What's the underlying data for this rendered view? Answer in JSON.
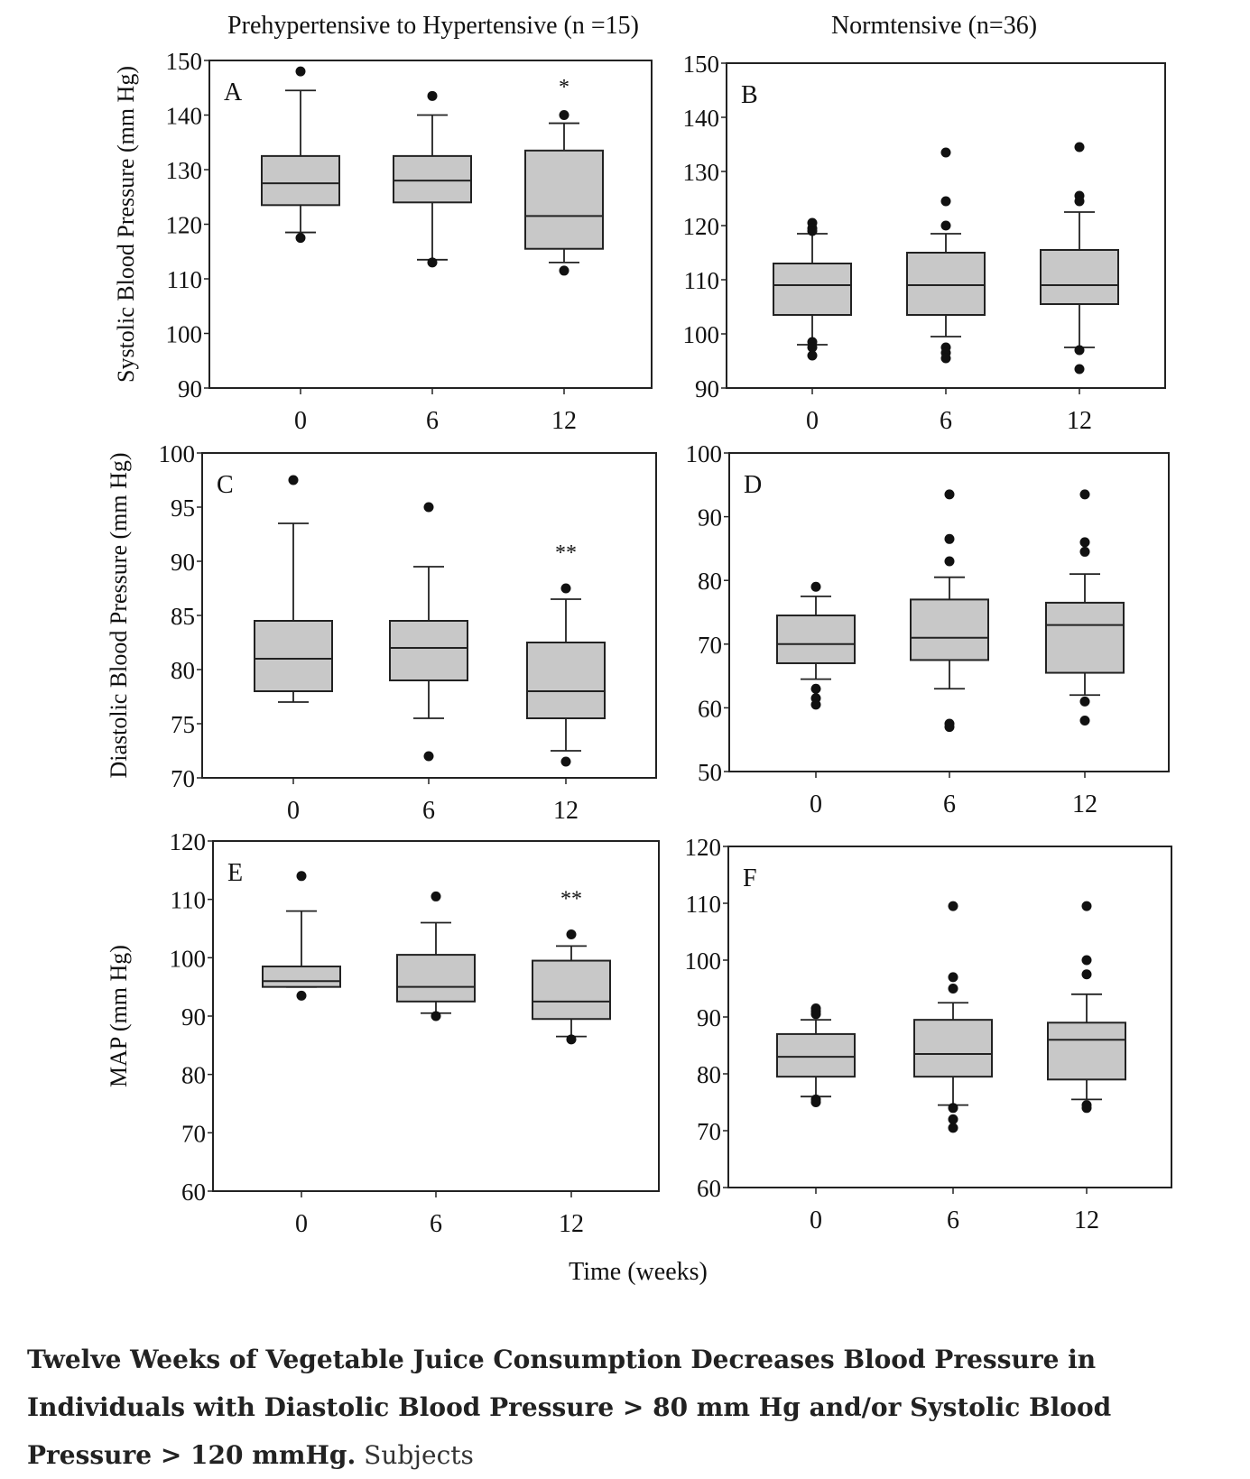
{
  "figure": {
    "group_titles": [
      "Prehypertensive to Hypertensive (n =15)",
      "Normtensive (n=36)"
    ],
    "x_axis_label": "Time (weeks)"
  },
  "chart_data": [
    {
      "type": "box",
      "panel": "A",
      "ylabel": "Systolic Blood Pressure (mm Hg)",
      "ylim": [
        90,
        150
      ],
      "yticks": [
        90,
        100,
        110,
        120,
        130,
        140,
        150
      ],
      "categories": [
        "0",
        "6",
        "12"
      ],
      "boxes": [
        {
          "whisker_low": 118.5,
          "q1": 123.5,
          "median": 127.5,
          "q3": 132.5,
          "whisker_high": 144.5,
          "outliers": [
            148,
            117.5
          ]
        },
        {
          "whisker_low": 113.5,
          "q1": 124,
          "median": 128,
          "q3": 132.5,
          "whisker_high": 140,
          "outliers": [
            143.5,
            113
          ]
        },
        {
          "whisker_low": 113,
          "q1": 115.5,
          "median": 121.5,
          "q3": 133.5,
          "whisker_high": 138.5,
          "outliers": [
            140,
            111.5
          ]
        }
      ],
      "annotations": [
        {
          "category": "12",
          "text": "*",
          "y": 145.5
        }
      ]
    },
    {
      "type": "box",
      "panel": "B",
      "ylabel": "",
      "ylim": [
        90,
        150
      ],
      "yticks": [
        90,
        100,
        110,
        120,
        130,
        140,
        150
      ],
      "categories": [
        "0",
        "6",
        "12"
      ],
      "boxes": [
        {
          "whisker_low": 98,
          "q1": 103.5,
          "median": 109,
          "q3": 113,
          "whisker_high": 118.5,
          "outliers": [
            120.5,
            119.5,
            119,
            98.5,
            97.5,
            96
          ]
        },
        {
          "whisker_low": 99.5,
          "q1": 103.5,
          "median": 109,
          "q3": 115,
          "whisker_high": 118.5,
          "outliers": [
            133.5,
            124.5,
            120,
            97.5,
            96.5,
            95.5
          ]
        },
        {
          "whisker_low": 97.5,
          "q1": 105.5,
          "median": 109,
          "q3": 115.5,
          "whisker_high": 122.5,
          "outliers": [
            134.5,
            125.5,
            124.5,
            97,
            93.5
          ]
        }
      ]
    },
    {
      "type": "box",
      "panel": "C",
      "ylabel": "Diastolic Blood Pressure (mm Hg)",
      "ylim": [
        70,
        100
      ],
      "yticks": [
        70,
        75,
        80,
        85,
        90,
        95,
        100
      ],
      "categories": [
        "0",
        "6",
        "12"
      ],
      "boxes": [
        {
          "whisker_low": 77,
          "q1": 78,
          "median": 81,
          "q3": 84.5,
          "whisker_high": 93.5,
          "outliers": [
            97.5
          ]
        },
        {
          "whisker_low": 75.5,
          "q1": 79,
          "median": 82,
          "q3": 84.5,
          "whisker_high": 89.5,
          "outliers": [
            95,
            72
          ]
        },
        {
          "whisker_low": 72.5,
          "q1": 75.5,
          "median": 78,
          "q3": 82.5,
          "whisker_high": 86.5,
          "outliers": [
            87.5,
            71.5
          ]
        }
      ],
      "annotations": [
        {
          "category": "12",
          "text": "**",
          "y": 91
        }
      ]
    },
    {
      "type": "box",
      "panel": "D",
      "ylabel": "",
      "ylim": [
        50,
        100
      ],
      "yticks": [
        50,
        60,
        70,
        80,
        90,
        100
      ],
      "categories": [
        "0",
        "6",
        "12"
      ],
      "boxes": [
        {
          "whisker_low": 64.5,
          "q1": 67,
          "median": 70,
          "q3": 74.5,
          "whisker_high": 77.5,
          "outliers": [
            79,
            63,
            61.5,
            60.5
          ]
        },
        {
          "whisker_low": 63,
          "q1": 67.5,
          "median": 71,
          "q3": 77,
          "whisker_high": 80.5,
          "outliers": [
            93.5,
            86.5,
            83,
            57.5,
            57
          ]
        },
        {
          "whisker_low": 62,
          "q1": 65.5,
          "median": 73,
          "q3": 76.5,
          "whisker_high": 81,
          "outliers": [
            93.5,
            86,
            84.5,
            61,
            58
          ]
        }
      ]
    },
    {
      "type": "box",
      "panel": "E",
      "ylabel": "MAP (mm Hg)",
      "ylim": [
        60,
        120
      ],
      "yticks": [
        60,
        70,
        80,
        90,
        100,
        110,
        120
      ],
      "categories": [
        "0",
        "6",
        "12"
      ],
      "boxes": [
        {
          "whisker_low": 95,
          "q1": 95,
          "median": 96,
          "q3": 98.5,
          "whisker_high": 108,
          "outliers": [
            114,
            93.5
          ]
        },
        {
          "whisker_low": 90.5,
          "q1": 92.5,
          "median": 95,
          "q3": 100.5,
          "whisker_high": 106,
          "outliers": [
            110.5,
            90
          ]
        },
        {
          "whisker_low": 86.5,
          "q1": 89.5,
          "median": 92.5,
          "q3": 99.5,
          "whisker_high": 102,
          "outliers": [
            104,
            86
          ]
        }
      ],
      "annotations": [
        {
          "category": "12",
          "text": "**",
          "y": 110.5
        }
      ]
    },
    {
      "type": "box",
      "panel": "F",
      "ylabel": "",
      "ylim": [
        60,
        120
      ],
      "yticks": [
        60,
        70,
        80,
        90,
        100,
        110,
        120
      ],
      "categories": [
        "0",
        "6",
        "12"
      ],
      "boxes": [
        {
          "whisker_low": 76,
          "q1": 79.5,
          "median": 83,
          "q3": 87,
          "whisker_high": 89.5,
          "outliers": [
            91.5,
            91,
            90.5,
            75.5,
            75
          ]
        },
        {
          "whisker_low": 74.5,
          "q1": 79.5,
          "median": 83.5,
          "q3": 89.5,
          "whisker_high": 92.5,
          "outliers": [
            109.5,
            97,
            95,
            74,
            72,
            70.5
          ]
        },
        {
          "whisker_low": 75.5,
          "q1": 79,
          "median": 86,
          "q3": 89,
          "whisker_high": 94,
          "outliers": [
            109.5,
            100,
            97.5,
            74.5,
            74
          ]
        }
      ]
    }
  ],
  "caption": {
    "title": "Twelve Weeks of Vegetable Juice Consumption Decreases Blood Pressure in Individuals with Diastolic Blood Pressure > 80 mm Hg and/or Systolic Blood Pressure > 120 mmHg.",
    "text": "Subjects"
  }
}
